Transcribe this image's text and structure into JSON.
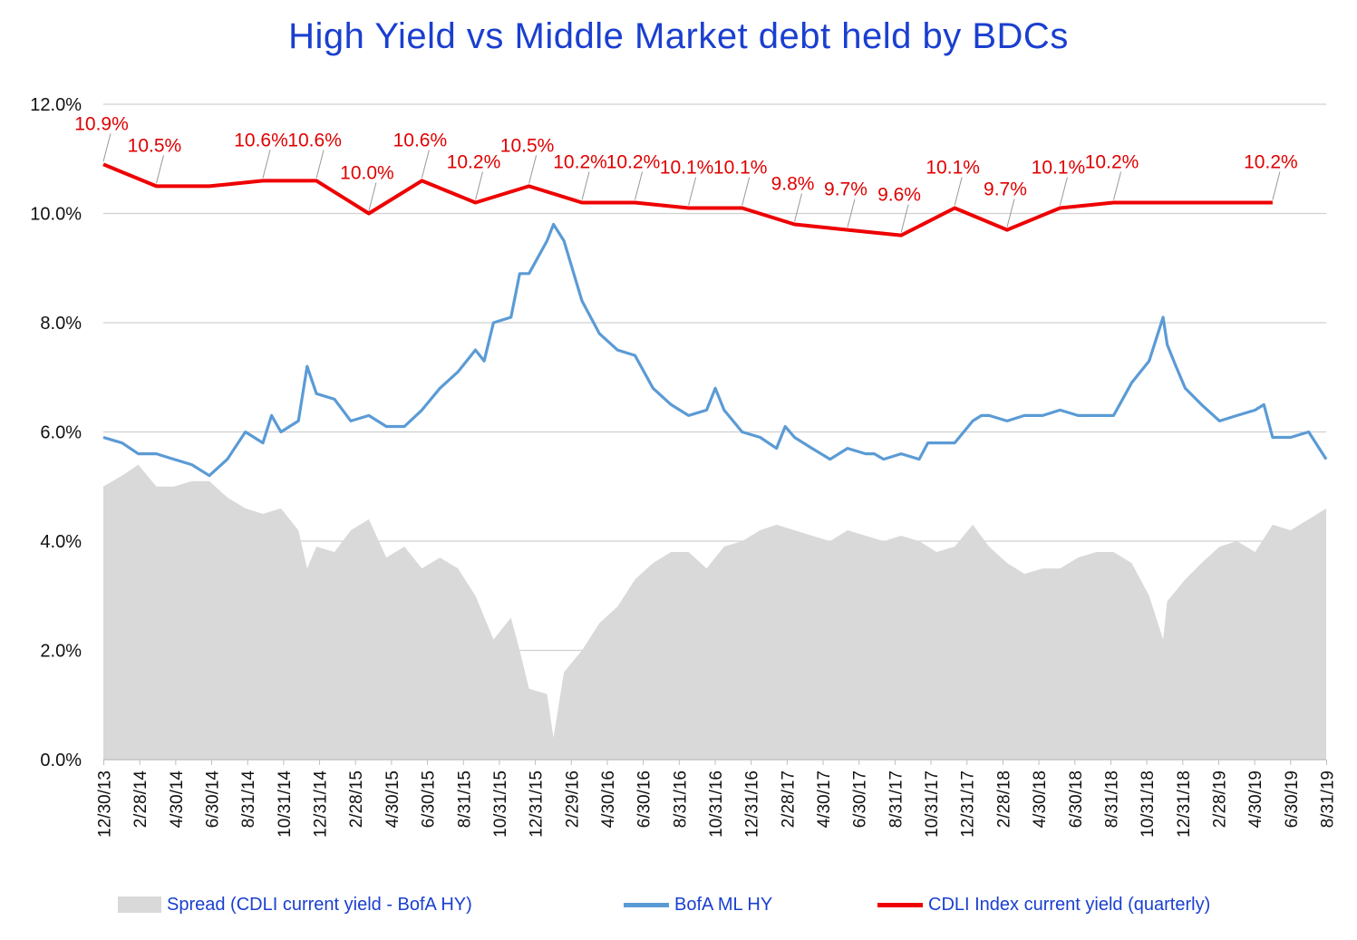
{
  "chart_data": {
    "type": "line",
    "title": "High Yield  vs  Middle Market debt held by BDCs",
    "ylim": [
      0,
      12
    ],
    "y_ticks": [
      "0.0%",
      "2.0%",
      "4.0%",
      "6.0%",
      "8.0%",
      "10.0%",
      "12.0%"
    ],
    "x_range": [
      "2013-12-30",
      "2019-09-30"
    ],
    "x_tick_labels": [
      "12/30/13",
      "2/28/14",
      "4/30/14",
      "6/30/14",
      "8/31/14",
      "10/31/14",
      "12/31/14",
      "2/28/15",
      "4/30/15",
      "6/30/15",
      "8/31/15",
      "10/31/15",
      "12/31/15",
      "2/29/16",
      "4/30/16",
      "6/30/16",
      "8/31/16",
      "10/31/16",
      "12/31/16",
      "2/28/17",
      "4/30/17",
      "6/30/17",
      "8/31/17",
      "10/31/17",
      "12/31/17",
      "2/28/18",
      "4/30/18",
      "6/30/18",
      "8/31/18",
      "10/31/18",
      "12/31/18",
      "2/28/19",
      "4/30/19",
      "6/30/19",
      "8/31/19"
    ],
    "grid": "horizontal",
    "legend_position": "bottom",
    "series": [
      {
        "name": "Spread (CDLI current yield - BofA HY)",
        "kind": "area",
        "color": "#d9d9d9",
        "x": [
          "2013-12-30",
          "2014-01-31",
          "2014-02-28",
          "2014-03-31",
          "2014-04-30",
          "2014-05-31",
          "2014-06-30",
          "2014-07-31",
          "2014-08-31",
          "2014-09-30",
          "2014-10-31",
          "2014-11-30",
          "2014-12-15",
          "2014-12-31",
          "2015-01-31",
          "2015-02-28",
          "2015-03-31",
          "2015-04-30",
          "2015-05-31",
          "2015-06-30",
          "2015-07-31",
          "2015-08-31",
          "2015-09-30",
          "2015-10-31",
          "2015-11-30",
          "2015-12-15",
          "2015-12-31",
          "2016-01-31",
          "2016-02-11",
          "2016-02-29",
          "2016-03-31",
          "2016-04-30",
          "2016-05-31",
          "2016-06-30",
          "2016-07-31",
          "2016-08-31",
          "2016-09-30",
          "2016-10-31",
          "2016-11-30",
          "2016-12-31",
          "2017-01-31",
          "2017-02-28",
          "2017-03-31",
          "2017-04-30",
          "2017-05-31",
          "2017-06-30",
          "2017-07-31",
          "2017-08-31",
          "2017-09-30",
          "2017-10-31",
          "2017-11-30",
          "2017-12-31",
          "2018-01-31",
          "2018-02-28",
          "2018-03-31",
          "2018-04-30",
          "2018-05-31",
          "2018-06-30",
          "2018-07-31",
          "2018-08-31",
          "2018-09-30",
          "2018-10-31",
          "2018-11-30",
          "2018-12-24",
          "2018-12-31",
          "2019-01-31",
          "2019-02-28",
          "2019-03-31",
          "2019-04-30",
          "2019-05-31",
          "2019-06-30",
          "2019-07-31",
          "2019-08-31",
          "2019-09-30"
        ],
        "values": [
          5.0,
          5.2,
          5.4,
          5.0,
          5.0,
          5.1,
          5.1,
          4.8,
          4.6,
          4.5,
          4.6,
          4.2,
          3.5,
          3.9,
          3.8,
          4.2,
          4.4,
          3.7,
          3.9,
          3.5,
          3.7,
          3.5,
          3.0,
          2.2,
          2.6,
          2.0,
          1.3,
          1.2,
          0.4,
          1.6,
          2.0,
          2.5,
          2.8,
          3.3,
          3.6,
          3.8,
          3.8,
          3.5,
          3.9,
          4.0,
          4.2,
          4.3,
          4.2,
          4.1,
          4.0,
          4.2,
          4.1,
          4.0,
          4.1,
          4.0,
          3.8,
          3.9,
          4.3,
          3.9,
          3.6,
          3.4,
          3.5,
          3.5,
          3.7,
          3.8,
          3.8,
          3.6,
          3.0,
          2.2,
          2.9,
          3.3,
          3.6,
          3.9,
          4.0,
          3.8,
          4.3,
          4.2,
          4.4,
          4.6
        ]
      },
      {
        "name": "BofA ML HY",
        "kind": "line",
        "color": "#5b9bd5",
        "x": [
          "2013-12-30",
          "2014-01-31",
          "2014-02-28",
          "2014-03-31",
          "2014-04-30",
          "2014-05-31",
          "2014-06-30",
          "2014-07-31",
          "2014-08-31",
          "2014-09-30",
          "2014-10-15",
          "2014-10-31",
          "2014-11-30",
          "2014-12-15",
          "2014-12-31",
          "2015-01-31",
          "2015-02-28",
          "2015-03-31",
          "2015-04-30",
          "2015-05-31",
          "2015-06-30",
          "2015-07-31",
          "2015-08-31",
          "2015-09-30",
          "2015-10-15",
          "2015-10-31",
          "2015-11-30",
          "2015-12-15",
          "2015-12-31",
          "2016-01-31",
          "2016-02-11",
          "2016-02-29",
          "2016-03-31",
          "2016-04-30",
          "2016-05-31",
          "2016-06-30",
          "2016-07-31",
          "2016-08-31",
          "2016-09-30",
          "2016-10-31",
          "2016-11-15",
          "2016-11-30",
          "2016-12-31",
          "2017-01-31",
          "2017-02-28",
          "2017-03-15",
          "2017-03-31",
          "2017-04-30",
          "2017-05-31",
          "2017-06-30",
          "2017-07-31",
          "2017-08-15",
          "2017-08-31",
          "2017-09-30",
          "2017-10-31",
          "2017-11-15",
          "2017-11-30",
          "2017-12-31",
          "2018-01-31",
          "2018-02-15",
          "2018-02-28",
          "2018-03-31",
          "2018-04-30",
          "2018-05-31",
          "2018-06-30",
          "2018-07-31",
          "2018-08-31",
          "2018-09-30",
          "2018-10-31",
          "2018-11-30",
          "2018-12-24",
          "2018-12-31",
          "2019-01-15",
          "2019-01-31",
          "2019-02-28",
          "2019-03-31",
          "2019-04-30",
          "2019-05-31",
          "2019-06-15",
          "2019-06-30",
          "2019-07-31",
          "2019-08-31",
          "2019-09-30"
        ],
        "values": [
          5.9,
          5.8,
          5.6,
          5.6,
          5.5,
          5.4,
          5.2,
          5.5,
          6.0,
          5.8,
          6.3,
          6.0,
          6.2,
          7.2,
          6.7,
          6.6,
          6.2,
          6.3,
          6.1,
          6.1,
          6.4,
          6.8,
          7.1,
          7.5,
          7.3,
          8.0,
          8.1,
          8.9,
          8.9,
          9.5,
          9.8,
          9.5,
          8.4,
          7.8,
          7.5,
          7.4,
          6.8,
          6.5,
          6.3,
          6.4,
          6.8,
          6.4,
          6.0,
          5.9,
          5.7,
          6.1,
          5.9,
          5.7,
          5.5,
          5.7,
          5.6,
          5.6,
          5.5,
          5.6,
          5.5,
          5.8,
          5.8,
          5.8,
          6.2,
          6.3,
          6.3,
          6.2,
          6.3,
          6.3,
          6.4,
          6.3,
          6.3,
          6.3,
          6.9,
          7.3,
          8.1,
          7.6,
          7.2,
          6.8,
          6.5,
          6.2,
          6.3,
          6.4,
          6.5,
          5.9,
          5.9,
          6.0,
          5.5
        ]
      },
      {
        "name": "CDLI Index current yield (quarterly)",
        "kind": "line",
        "color": "#ee0000",
        "x": [
          "2013-12-30",
          "2014-03-31",
          "2014-06-30",
          "2014-09-30",
          "2014-12-31",
          "2015-03-31",
          "2015-06-30",
          "2015-09-30",
          "2015-12-31",
          "2016-03-31",
          "2016-06-30",
          "2016-09-30",
          "2016-12-31",
          "2017-03-31",
          "2017-06-30",
          "2017-09-30",
          "2017-12-31",
          "2018-03-31",
          "2018-06-30",
          "2018-09-30",
          "2018-12-31",
          "2019-03-31",
          "2019-06-30"
        ],
        "values": [
          10.9,
          10.5,
          10.5,
          10.6,
          10.6,
          10.0,
          10.6,
          10.2,
          10.5,
          10.2,
          10.2,
          10.1,
          10.1,
          9.8,
          9.7,
          9.6,
          10.1,
          9.7,
          10.1,
          10.2,
          10.2,
          10.2,
          10.2
        ],
        "data_labels": [
          "10.9%",
          "10.5%",
          "",
          "10.6%",
          "10.6%",
          "10.0%",
          "10.6%",
          "10.2%",
          "10.5%",
          "10.2%",
          "10.2%",
          "10.1%",
          "10.1%",
          "9.8%",
          "9.7%",
          "9.6%",
          "10.1%",
          "9.7%",
          "10.1%",
          "10.2%",
          "",
          "",
          "10.2%"
        ]
      }
    ]
  }
}
